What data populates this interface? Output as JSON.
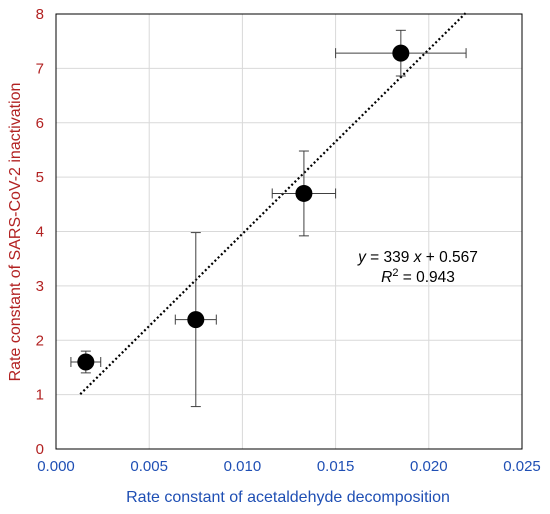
{
  "colors": {
    "x_axis_text": "#1f4fb4",
    "y_axis_text": "#b22222",
    "grid": "#d9d9d9",
    "marker": "#000000",
    "error_bar": "#404040",
    "trendline": "#000000"
  },
  "chart_data": {
    "type": "scatter",
    "xlabel": "Rate constant of acetaldehyde decomposition",
    "ylabel": "Rate constant of SARS-CoV-2 inactivation",
    "xlim": [
      0,
      0.025
    ],
    "ylim": [
      0,
      8
    ],
    "x_ticks": [
      0,
      0.005,
      0.01,
      0.015,
      0.02,
      0.025
    ],
    "x_tick_labels": [
      "0.000",
      "0.005",
      "0.010",
      "0.015",
      "0.020",
      "0.025"
    ],
    "y_ticks": [
      0,
      1,
      2,
      3,
      4,
      5,
      6,
      7,
      8
    ],
    "y_tick_labels": [
      "0",
      "1",
      "2",
      "3",
      "4",
      "5",
      "6",
      "7",
      "8"
    ],
    "grid": true,
    "legend": "none",
    "points": [
      {
        "x": 0.0016,
        "y": 1.6,
        "x_err": 0.0008,
        "y_err_low": 0.2,
        "y_err_high": 0.2
      },
      {
        "x": 0.0075,
        "y": 2.38,
        "x_err": 0.0011,
        "y_err_low": 1.6,
        "y_err_high": 1.6
      },
      {
        "x": 0.0133,
        "y": 4.7,
        "x_err": 0.0017,
        "y_err_low": 0.78,
        "y_err_high": 0.78
      },
      {
        "x": 0.0185,
        "y": 7.28,
        "x_err": 0.0035,
        "y_err_low": 0.42,
        "y_err_high": 0.42
      }
    ],
    "trendline": {
      "type": "linear",
      "style": "dotted",
      "slope": 339,
      "intercept": 0.567,
      "x_range": [
        0.0013,
        0.022
      ]
    },
    "annotations": {
      "equation_y": "y",
      "equation_eq": " = 339 ",
      "equation_x": "x",
      "equation_rest": " + 0.567",
      "r2_label": "R",
      "r2_sup": "2",
      "r2_value": " = 0.943"
    }
  }
}
